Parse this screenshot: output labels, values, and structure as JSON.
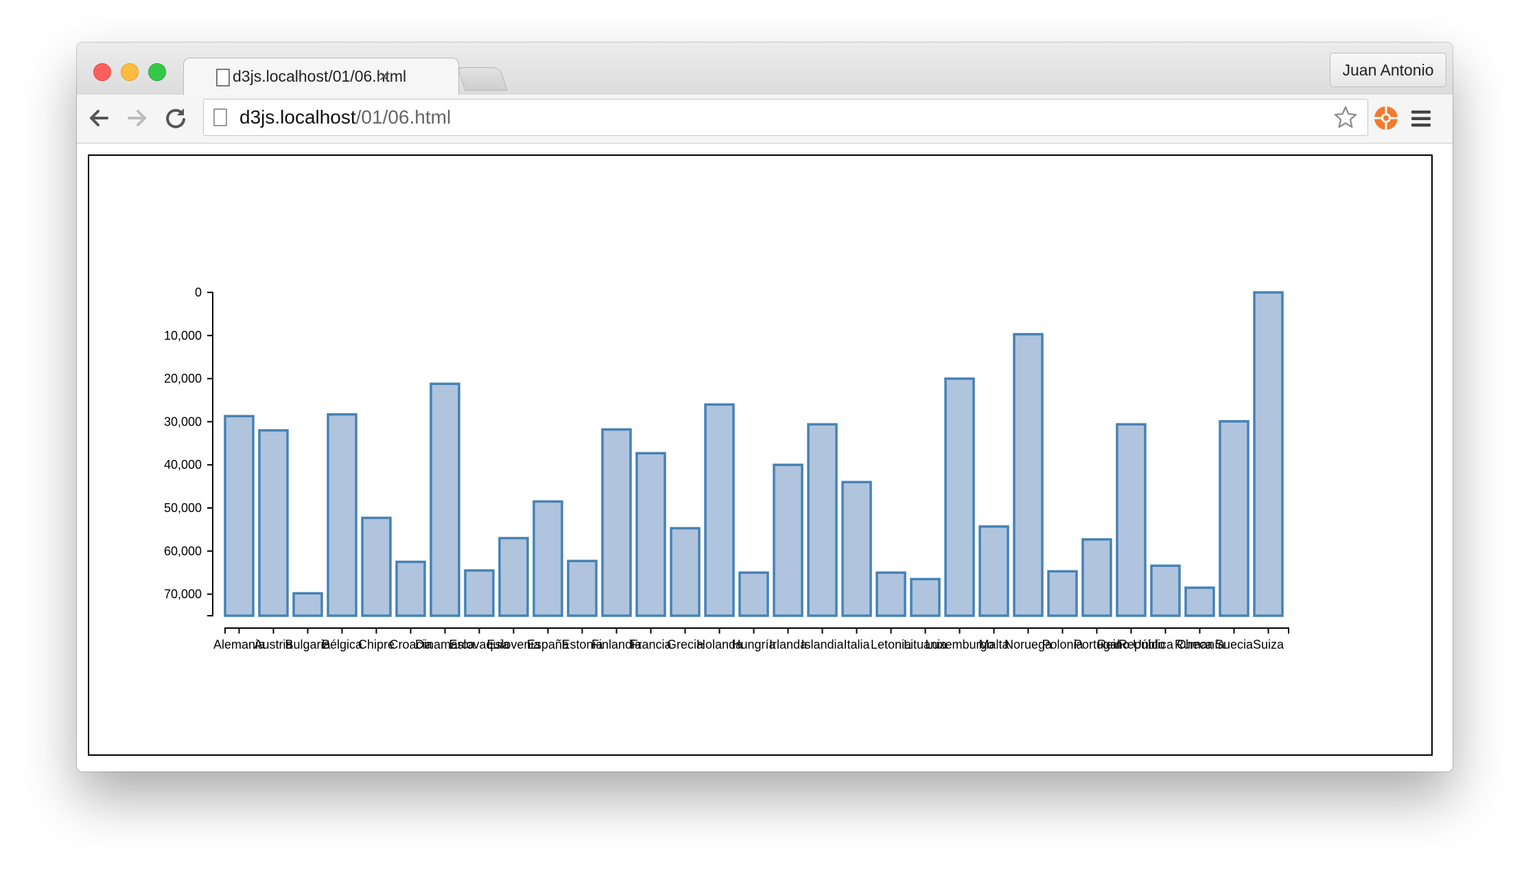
{
  "browser": {
    "tab_title": "d3js.localhost/01/06.html",
    "tab_close": "×",
    "profile_name": "Juan Antonio",
    "url_host": "d3js.localhost",
    "url_path": "/01/06.html",
    "icons": [
      "back-arrow-icon",
      "forward-arrow-icon",
      "reload-icon",
      "file-icon",
      "star-icon",
      "extension-icon",
      "hamburger-menu-icon"
    ]
  },
  "chart_data": {
    "type": "bar",
    "title": "",
    "xlabel": "",
    "ylabel": "",
    "y_axis_inverted": true,
    "ylim": [
      0,
      75000
    ],
    "yticks": [
      0,
      10000,
      20000,
      30000,
      40000,
      50000,
      60000,
      70000
    ],
    "ytick_labels": [
      "0",
      "10,000",
      "20,000",
      "30,000",
      "40,000",
      "50,000",
      "60,000",
      "70,000"
    ],
    "bar_fill": "#b0c4de",
    "bar_stroke": "#4682b4",
    "categories": [
      "Alemania",
      "Austria",
      "Bulgaria",
      "Bélgica",
      "Chipre",
      "Croacia",
      "Dinamarca",
      "Eslovaquia",
      "Eslovenia",
      "España",
      "Estonia",
      "Finlandia",
      "Francia",
      "Grecia",
      "Holanda",
      "Hungría",
      "Irlanda",
      "Islandia",
      "Italia",
      "Letonia",
      "Lituania",
      "Luxemburgo",
      "Malta",
      "Noruega",
      "Polonia",
      "Portugal",
      "Reino Unido",
      "República Checa",
      "Rumanía",
      "Suecia",
      "Suiza"
    ],
    "values": [
      28700,
      32000,
      69800,
      28300,
      52300,
      62500,
      21200,
      64500,
      57000,
      48500,
      62300,
      31800,
      37300,
      54700,
      26000,
      65000,
      40000,
      30600,
      44000,
      65000,
      66500,
      20000,
      54300,
      9700,
      64700,
      57300,
      30600,
      63400,
      68500,
      29900,
      0
    ]
  }
}
